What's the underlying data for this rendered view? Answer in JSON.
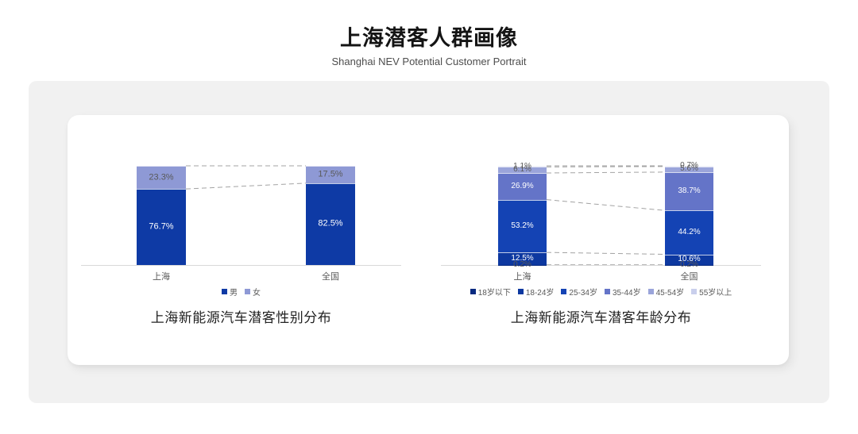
{
  "header": {
    "title": "上海潜客人群画像",
    "subtitle": "Shanghai NEV Potential Customer Portrait"
  },
  "chart_data": [
    {
      "type": "bar",
      "stacked": true,
      "percent_stacked": true,
      "caption": "上海新能源汽车潜客性别分布",
      "categories": [
        "上海",
        "全国"
      ],
      "series": [
        {
          "name": "男",
          "color": "#0e3aa5",
          "label_color": "#ffffff",
          "values": [
            76.7,
            82.5
          ]
        },
        {
          "name": "女",
          "color": "#8e99d5",
          "label_color": "#595959",
          "values": [
            23.3,
            17.5
          ]
        }
      ],
      "ylim": [
        0,
        100
      ],
      "grid": false,
      "legend_position": "bottom",
      "connector_lines": "dashed"
    },
    {
      "type": "bar",
      "stacked": true,
      "percent_stacked": true,
      "caption": "上海新能源汽车潜客年龄分布",
      "categories": [
        "上海",
        "全国"
      ],
      "series": [
        {
          "name": "18岁以下",
          "color": "#082a80",
          "label_color": "#595959",
          "values": [
            0.2,
            0.2
          ]
        },
        {
          "name": "18-24岁",
          "color": "#0d38a0",
          "label_color": "#ffffff",
          "values": [
            12.5,
            10.6
          ]
        },
        {
          "name": "25-34岁",
          "color": "#1443b4",
          "label_color": "#ffffff",
          "values": [
            53.2,
            44.2
          ]
        },
        {
          "name": "35-44岁",
          "color": "#6474c8",
          "label_color": "#ffffff",
          "values": [
            26.9,
            38.7
          ]
        },
        {
          "name": "45-54岁",
          "color": "#9aa4da",
          "label_color": "#595959",
          "values": [
            6.1,
            5.6
          ]
        },
        {
          "name": "55岁以上",
          "color": "#c9cfec",
          "label_color": "#595959",
          "values": [
            1.1,
            0.7
          ]
        }
      ],
      "ylim": [
        0,
        100
      ],
      "grid": false,
      "legend_position": "bottom",
      "connector_lines": "dashed"
    }
  ]
}
